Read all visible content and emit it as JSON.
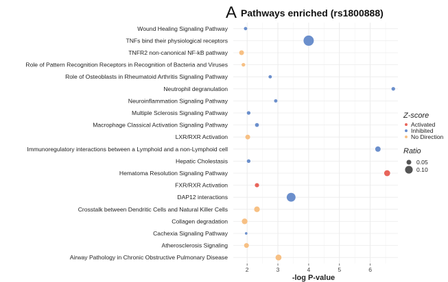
{
  "panel_letter": "A",
  "chart_data": {
    "type": "scatter",
    "title": "Pathways enriched (rs1800888)",
    "xlabel": "-log P-value",
    "ylabel": "",
    "xlim": [
      1.55,
      6.9
    ],
    "x_ticks": [
      2,
      3,
      4,
      5,
      6
    ],
    "grid": true,
    "legend_placement": "right",
    "legend": {
      "color_title": "Z-score",
      "color_entries": [
        {
          "label": "Activated",
          "key": "Activated",
          "color": "#e8655b"
        },
        {
          "label": "Inhibited",
          "key": "Inhibited",
          "color": "#6b8fcc"
        },
        {
          "label": "No Direction",
          "key": "No Direction",
          "color": "#f7c084"
        }
      ],
      "size_title": "Ratio",
      "size_entries": [
        {
          "label": "0.05",
          "ratio": 0.05
        },
        {
          "label": "0.10",
          "ratio": 0.1
        }
      ]
    },
    "points": [
      {
        "pathway": "Wound Healing Signaling Pathway",
        "x": 1.95,
        "zscore": "Inhibited",
        "ratio": 0.025
      },
      {
        "pathway": "TNFs bind their physiological receptors",
        "x": 4.0,
        "zscore": "Inhibited",
        "ratio": 0.145
      },
      {
        "pathway": "TNFR2 non-canonical NF-kB pathway",
        "x": 1.82,
        "zscore": "No Direction",
        "ratio": 0.05
      },
      {
        "pathway": "Role of Pattern Recognition Receptors in Recognition of Bacteria and Viruses",
        "x": 1.88,
        "zscore": "No Direction",
        "ratio": 0.03
      },
      {
        "pathway": "Role of Osteoblasts in Rheumatoid Arthritis Signaling Pathway",
        "x": 2.75,
        "zscore": "Inhibited",
        "ratio": 0.025
      },
      {
        "pathway": "Neutrophil degranulation",
        "x": 6.75,
        "zscore": "Inhibited",
        "ratio": 0.03
      },
      {
        "pathway": "Neuroinflammation Signaling Pathway",
        "x": 2.93,
        "zscore": "Inhibited",
        "ratio": 0.025
      },
      {
        "pathway": "Multiple Sclerosis Signaling Pathway",
        "x": 2.05,
        "zscore": "Inhibited",
        "ratio": 0.03
      },
      {
        "pathway": "Macrophage Classical Activation Signaling Pathway",
        "x": 2.32,
        "zscore": "Inhibited",
        "ratio": 0.035
      },
      {
        "pathway": "LXR/RXR Activation",
        "x": 2.02,
        "zscore": "No Direction",
        "ratio": 0.05
      },
      {
        "pathway": "Immunoregulatory interactions between a Lymphoid and a non-Lymphoid cell",
        "x": 6.25,
        "zscore": "Inhibited",
        "ratio": 0.06
      },
      {
        "pathway": "Hepatic Cholestasis",
        "x": 2.05,
        "zscore": "Inhibited",
        "ratio": 0.03
      },
      {
        "pathway": "Hematoma Resolution Signaling Pathway",
        "x": 6.55,
        "zscore": "Activated",
        "ratio": 0.07
      },
      {
        "pathway": "FXR/RXR Activation",
        "x": 2.32,
        "zscore": "Activated",
        "ratio": 0.04
      },
      {
        "pathway": "DAP12 interactions",
        "x": 3.43,
        "zscore": "Inhibited",
        "ratio": 0.12
      },
      {
        "pathway": "Crosstalk between Dendritic Cells and Natural Killer Cells",
        "x": 2.32,
        "zscore": "No Direction",
        "ratio": 0.065
      },
      {
        "pathway": "Collagen degradation",
        "x": 1.92,
        "zscore": "No Direction",
        "ratio": 0.065
      },
      {
        "pathway": "Cachexia Signaling Pathway",
        "x": 1.97,
        "zscore": "Inhibited",
        "ratio": 0.01
      },
      {
        "pathway": "Atherosclerosis Signaling",
        "x": 1.98,
        "zscore": "No Direction",
        "ratio": 0.05
      },
      {
        "pathway": "Airway Pathology in Chronic Obstructive Pulmonary Disease",
        "x": 3.02,
        "zscore": "No Direction",
        "ratio": 0.07
      }
    ]
  }
}
